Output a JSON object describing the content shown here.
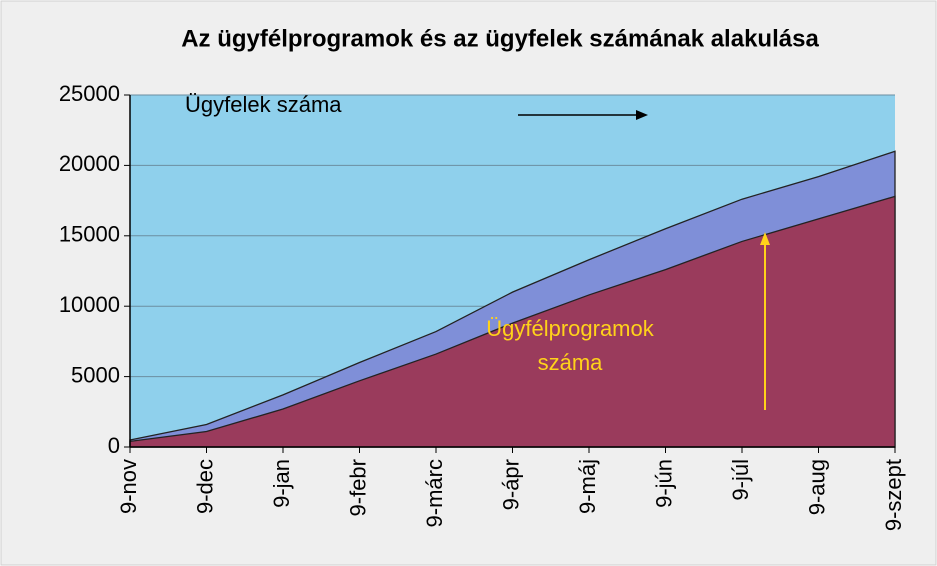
{
  "chart_data": {
    "type": "area",
    "title": "Az ügyfélprogramok és az ügyfelek számának alakulása",
    "categories": [
      "9-nov",
      "9-dec",
      "9-jan",
      "9-febr",
      "9-márc",
      "9-ápr",
      "9-máj",
      "9-jún",
      "9-júl",
      "9-aug",
      "9-szept"
    ],
    "series": [
      {
        "name": "Ügyfelek száma",
        "color": "#7f8fd8",
        "label_color": "#000000",
        "values": [
          500,
          1600,
          3700,
          6000,
          8200,
          11000,
          13300,
          15500,
          17600,
          19200,
          21000
        ]
      },
      {
        "name": "Ügyfélprogramok száma",
        "color": "#9a3b5c",
        "label_color": "#ffd21a",
        "values": [
          400,
          1100,
          2700,
          4700,
          6600,
          8800,
          10800,
          12600,
          14600,
          16200,
          17800
        ]
      }
    ],
    "ylim": [
      0,
      25000
    ],
    "yticks": [
      0,
      5000,
      10000,
      15000,
      20000,
      25000
    ],
    "grid": true
  }
}
